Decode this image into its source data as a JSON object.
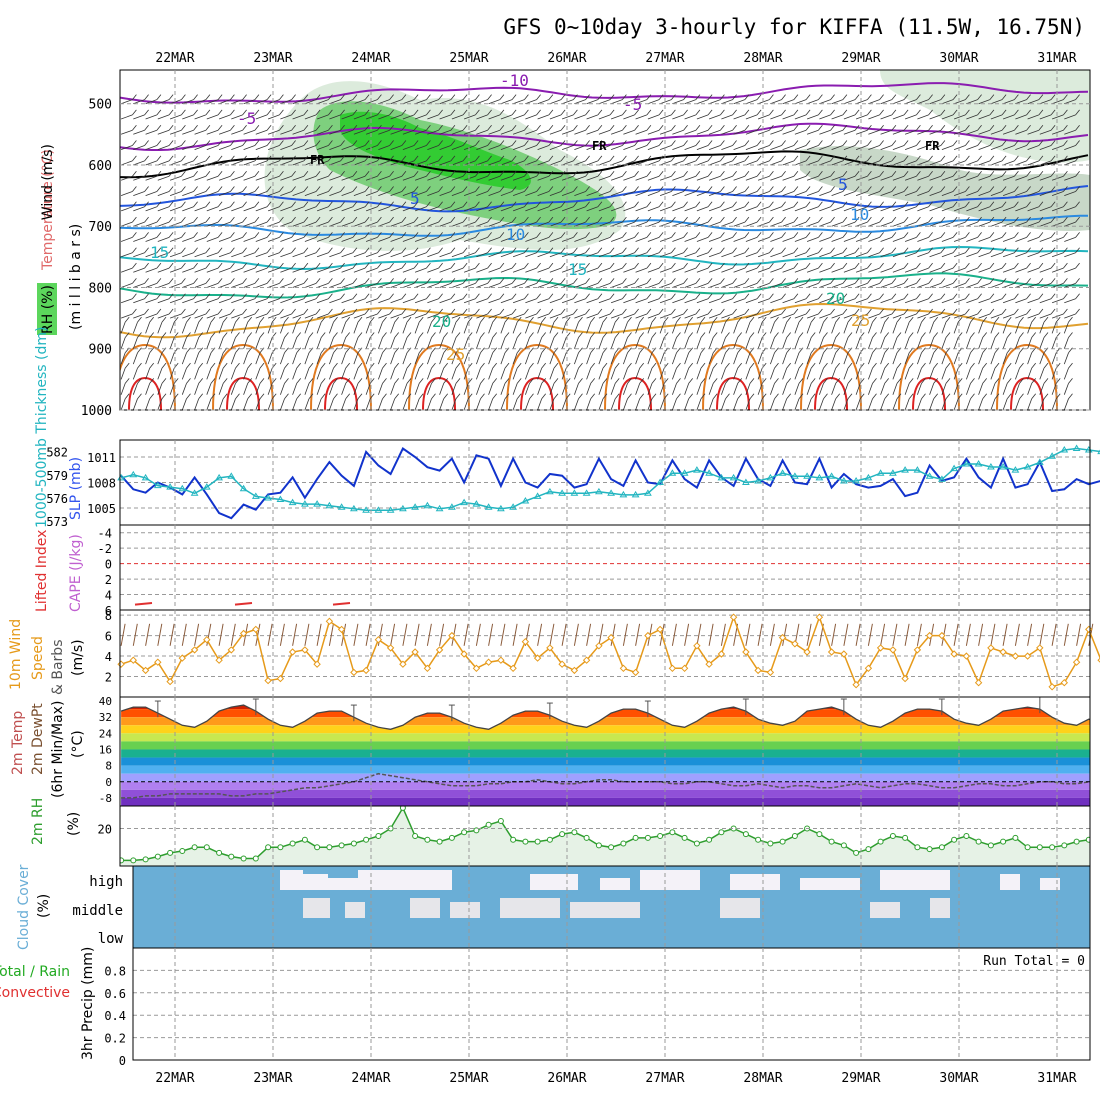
{
  "title": "GFS 0~10day 3-hourly for KIFFA (11.5W, 16.75N)",
  "dates": [
    "22MAR",
    "23MAR",
    "24MAR",
    "25MAR",
    "26MAR",
    "27MAR",
    "28MAR",
    "29MAR",
    "30MAR",
    "31MAR"
  ],
  "colors": {
    "rh_green": "#33cc33",
    "temp_purple": "#8a1cb0",
    "temp_blue": "#2255dd",
    "slp_blue": "#1133cc",
    "thickness_cyan": "#22b5c0",
    "li_red": "#e03030",
    "cape_violet": "#c060d0",
    "wind_orange": "#e69a1a",
    "rh2m_green": "#2e9e2e",
    "cloud_blue": "#6aaed6",
    "precip_green": "#22aa22"
  },
  "panels": {
    "upper": {
      "labels": {
        "rh": "RH (%)",
        "wind": "Wind (m/s)",
        "temp": "Temperature (°C)",
        "pressure": "(m i l l i b a r s)"
      },
      "y_ticks": [
        "500",
        "600",
        "700",
        "800",
        "900",
        "1000"
      ],
      "contour_labels": [
        "-10",
        "-5",
        "-5",
        "FR",
        "FR",
        "FR",
        "5",
        "5",
        "10",
        "10",
        "15",
        "15",
        "20",
        "20",
        "25",
        "25"
      ]
    },
    "slp": {
      "label_thk": "1000-500mb Thickness (dm)",
      "label_slp": "SLP (mb)",
      "ticks_left": [
        "582",
        "579",
        "576",
        "573"
      ],
      "ticks_right": [
        "1011",
        "1008",
        "1005"
      ]
    },
    "cape": {
      "label_li": "Lifted Index",
      "label_cape": "CAPE (J/kg)",
      "ticks": [
        "-4",
        "-2",
        "0",
        "2",
        "4",
        "6"
      ]
    },
    "wind10": {
      "label1": "10m Wind",
      "label2": "Speed",
      "label3": "& Barbs",
      "unit": "(m/s)",
      "ticks": [
        "8",
        "6",
        "4",
        "2"
      ]
    },
    "temp2m": {
      "label1": "2m Temp",
      "label2": "2m DewPt",
      "label3": "(6hr Min/Max)",
      "unit": "(°C)",
      "ticks": [
        "40",
        "32",
        "24",
        "16",
        "8",
        "0",
        "-8"
      ]
    },
    "rh2m": {
      "label": "2m RH",
      "unit": "(%)",
      "ticks": [
        "20"
      ]
    },
    "cloud": {
      "label": "Cloud Cover",
      "unit": "(%)",
      "levels": [
        "high",
        "middle",
        "low"
      ]
    },
    "precip": {
      "label_total": "Total / Rain",
      "label_conv": "Convective",
      "label_3hr": "3hr Precip (mm)",
      "ticks": [
        "0.8",
        "0.6",
        "0.4",
        "0.2",
        "0"
      ],
      "run_total": "Run Total = 0"
    }
  },
  "chart_data": [
    {
      "type": "line",
      "panel": "slp_thickness",
      "series": [
        {
          "name": "SLP (mb)",
          "values": [
            1008.8,
            1007.2,
            1006.8,
            1008.0,
            1007.4,
            1006.6,
            1008.6,
            1006.6,
            1004.4,
            1003.8,
            1005.4,
            1004.8,
            1006.6,
            1006.8,
            1008.6,
            1006.2,
            1008.4,
            1010.4,
            1008.8,
            1007.6,
            1011.6,
            1010.0,
            1009.0,
            1012.0,
            1011.0,
            1009.8,
            1009.4,
            1010.8,
            1008.0,
            1011.2,
            1010.8,
            1007.6,
            1010.8,
            1008.0,
            1007.4,
            1009.0,
            1008.8,
            1007.4,
            1007.8,
            1010.8,
            1008.4,
            1007.6,
            1010.6,
            1008.0,
            1007.8,
            1010.6,
            1008.4,
            1007.4,
            1010.6,
            1008.6,
            1007.6,
            1010.8,
            1008.4,
            1007.6,
            1010.6,
            1008.0,
            1007.8,
            1010.8,
            1007.4,
            1009.0,
            1007.8,
            1007.4,
            1007.6,
            1008.4,
            1006.4,
            1006.8,
            1010.0,
            1008.2,
            1008.6,
            1010.8,
            1008.6,
            1007.4,
            1010.8,
            1007.4,
            1007.8,
            1010.4,
            1007.0,
            1007.2,
            1008.4,
            1007.8,
            1008.2
          ]
        },
        {
          "name": "1000-500mb Thickness (dm)",
          "values": [
            578.6,
            579.0,
            578.6,
            577.6,
            577.4,
            577.2,
            576.6,
            577.4,
            578.6,
            578.8,
            577.2,
            576.2,
            576.0,
            575.8,
            575.4,
            575.2,
            575.2,
            575.0,
            574.8,
            574.6,
            574.4,
            574.4,
            574.4,
            574.6,
            574.8,
            575.0,
            574.6,
            574.8,
            575.4,
            575.2,
            574.8,
            574.6,
            574.8,
            575.6,
            576.2,
            576.8,
            576.6,
            576.6,
            576.6,
            576.8,
            576.6,
            576.4,
            576.4,
            576.6,
            578.0,
            579.2,
            579.2,
            579.6,
            579.2,
            578.6,
            578.6,
            578.0,
            578.2,
            578.6,
            579.2,
            578.8,
            578.8,
            578.6,
            578.8,
            578.2,
            578.2,
            578.6,
            579.2,
            579.2,
            579.6,
            579.6,
            578.8,
            578.4,
            579.8,
            580.4,
            580.4,
            580.0,
            580.0,
            579.6,
            580.0,
            580.6,
            581.4,
            582.2,
            582.4,
            582.2,
            582.0
          ]
        }
      ],
      "ylabel": "SLP (mb)",
      "ylim": [
        1003,
        1013
      ]
    },
    {
      "type": "line",
      "panel": "wind10",
      "series": [
        {
          "name": "Speed",
          "values": [
            3.2,
            3.6,
            2.6,
            3.4,
            1.5,
            3.8,
            4.6,
            5.6,
            3.6,
            4.6,
            6.2,
            6.6,
            1.6,
            1.8,
            4.4,
            4.6,
            3.2,
            7.4,
            6.6,
            2.4,
            2.6,
            5.6,
            4.8,
            3.2,
            4.4,
            2.8,
            4.6,
            6.0,
            4.2,
            2.8,
            3.4,
            3.6,
            2.8,
            5.4,
            3.8,
            4.8,
            3.2,
            2.6,
            3.6,
            5.0,
            5.8,
            2.8,
            2.4,
            6.0,
            6.6,
            2.8,
            2.8,
            5.0,
            3.2,
            4.2,
            7.8,
            4.4,
            2.6,
            2.4,
            5.8,
            5.2,
            4.4,
            7.8,
            4.4,
            4.2,
            1.2,
            2.8,
            4.8,
            4.6,
            1.8,
            4.6,
            6.0,
            6.0,
            4.2,
            4.0,
            1.4,
            4.8,
            4.4,
            4.0,
            4.0,
            4.8,
            1.0,
            1.4,
            3.4,
            6.6,
            3.6
          ]
        }
      ],
      "ylabel": "(m/s)",
      "ylim": [
        0,
        8.5
      ]
    },
    {
      "type": "area",
      "panel": "temp2m",
      "series": [
        {
          "name": "2m Temp",
          "values": [
            35,
            37,
            37,
            34,
            31,
            28,
            27,
            30,
            35,
            37,
            38,
            35,
            31,
            28,
            27,
            30,
            34,
            35,
            35,
            32,
            29,
            27,
            26,
            28,
            32,
            34,
            34,
            32,
            29,
            27,
            26,
            29,
            33,
            35,
            35,
            33,
            30,
            28,
            27,
            30,
            34,
            36,
            36,
            34,
            31,
            28,
            27,
            30,
            34,
            36,
            37,
            35,
            31,
            29,
            28,
            30,
            35,
            36,
            37,
            35,
            31,
            28,
            27,
            30,
            34,
            36,
            36,
            35,
            31,
            29,
            28,
            31,
            35,
            36,
            37,
            36,
            32,
            29,
            28,
            31,
            30
          ]
        },
        {
          "name": "2m DewPt",
          "values": [
            -8,
            -8,
            -7,
            -7,
            -6,
            -6,
            -6,
            -6,
            -6,
            -7,
            -7,
            -6,
            -6,
            -5,
            -4,
            -3,
            -3,
            -2,
            -1,
            0,
            2,
            4,
            3,
            2,
            1,
            0,
            -1,
            -2,
            -2,
            -2,
            -1,
            -1,
            0,
            0,
            1,
            0,
            -1,
            -1,
            0,
            1,
            1,
            0,
            0,
            0,
            0,
            -1,
            -1,
            0,
            0,
            -1,
            -2,
            -2,
            -1,
            -2,
            -3,
            -2,
            -2,
            -3,
            -3,
            -2,
            -1,
            -2,
            -3,
            -2,
            -1,
            -1,
            -2,
            -3,
            -3,
            -2,
            -1,
            -1,
            -2,
            -2,
            -1,
            0,
            0,
            -1,
            -1,
            0,
            0
          ]
        }
      ],
      "ylabel": "(°C)",
      "ylim": [
        -12,
        42
      ]
    },
    {
      "type": "line",
      "panel": "rh2m",
      "series": [
        {
          "name": "2m RH",
          "values": [
            3,
            3,
            3.5,
            5,
            7,
            8,
            10,
            10,
            7,
            5,
            4,
            4,
            10,
            10,
            12,
            14,
            10,
            10,
            11,
            12,
            14,
            16,
            20,
            31,
            16,
            14,
            13,
            15,
            18,
            19,
            22,
            24,
            14,
            13,
            13,
            14,
            17,
            18,
            15,
            11,
            10,
            12,
            15,
            15,
            16,
            18,
            15,
            12,
            14,
            18,
            20,
            17,
            14,
            12,
            13,
            16,
            20,
            17,
            13,
            11,
            7,
            9,
            13,
            16,
            15,
            10,
            9,
            10,
            14,
            16,
            13,
            11,
            13,
            15,
            10,
            10,
            10,
            11,
            13,
            14,
            14
          ]
        }
      ],
      "ylabel": "(%)",
      "ylim": [
        0,
        32
      ]
    },
    {
      "type": "line",
      "panel": "precip",
      "series": [
        {
          "name": "Total / Rain",
          "values": [
            0,
            0,
            0,
            0,
            0,
            0,
            0,
            0,
            0,
            0
          ]
        }
      ],
      "ylabel": "3hr Precip (mm)",
      "ylim": [
        0,
        1
      ]
    }
  ]
}
